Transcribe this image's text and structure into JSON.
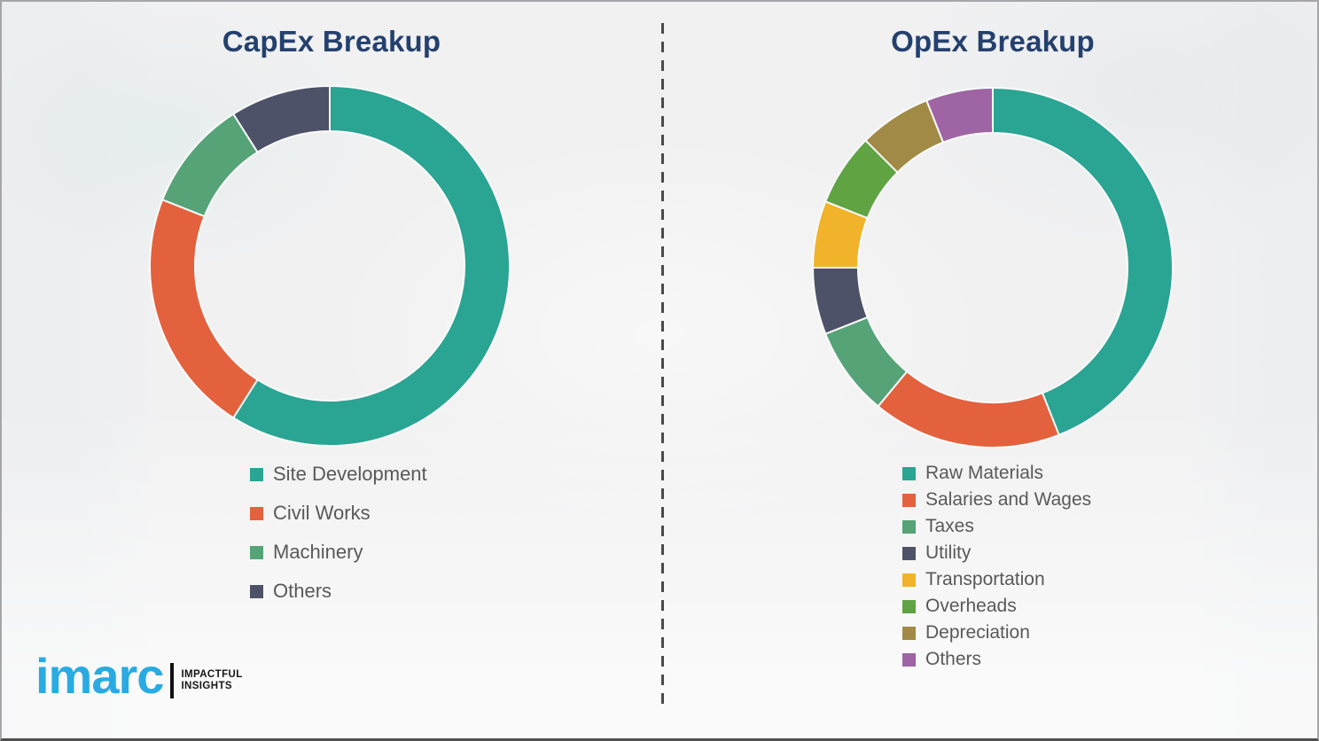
{
  "chart_data": [
    {
      "type": "donut",
      "title": "CapEx Breakup",
      "labels": [
        "Site Development",
        "Civil Works",
        "Machinery",
        "Others"
      ],
      "values": [
        59,
        22,
        10,
        9
      ],
      "values_estimated_from_angles": true,
      "unit": "percent",
      "colors": [
        "#2AA493",
        "#E4613D",
        "#55A377",
        "#4E5268"
      ],
      "start_angle_deg": 0,
      "direction": "clockwise",
      "legend_position": "below-chart-left"
    },
    {
      "type": "donut",
      "title": "OpEx Breakup",
      "labels": [
        "Raw Materials",
        "Salaries and Wages",
        "Taxes",
        "Utility",
        "Transportation",
        "Overheads",
        "Depreciation",
        "Others"
      ],
      "values": [
        44,
        17,
        8,
        6,
        6,
        6.5,
        6.5,
        6
      ],
      "values_estimated_from_angles": true,
      "unit": "percent",
      "colors": [
        "#2AA493",
        "#E4613D",
        "#55A377",
        "#4E5268",
        "#F0B32A",
        "#5FA343",
        "#A18A45",
        "#9E64A3"
      ],
      "start_angle_deg": 0,
      "direction": "clockwise",
      "legend_position": "below-chart-left"
    }
  ],
  "divider": {
    "style": "vertical-dashed",
    "color": "#4a4a4a"
  },
  "footer": {
    "logo_text": "imarc",
    "logo_color": "#29ABE2",
    "tagline": [
      "IMPACTFUL",
      "INSIGHTS"
    ]
  },
  "styles": {
    "title_color": "#24406E",
    "legend_text_color": "#595959",
    "background_color": "#f1f1f2"
  }
}
